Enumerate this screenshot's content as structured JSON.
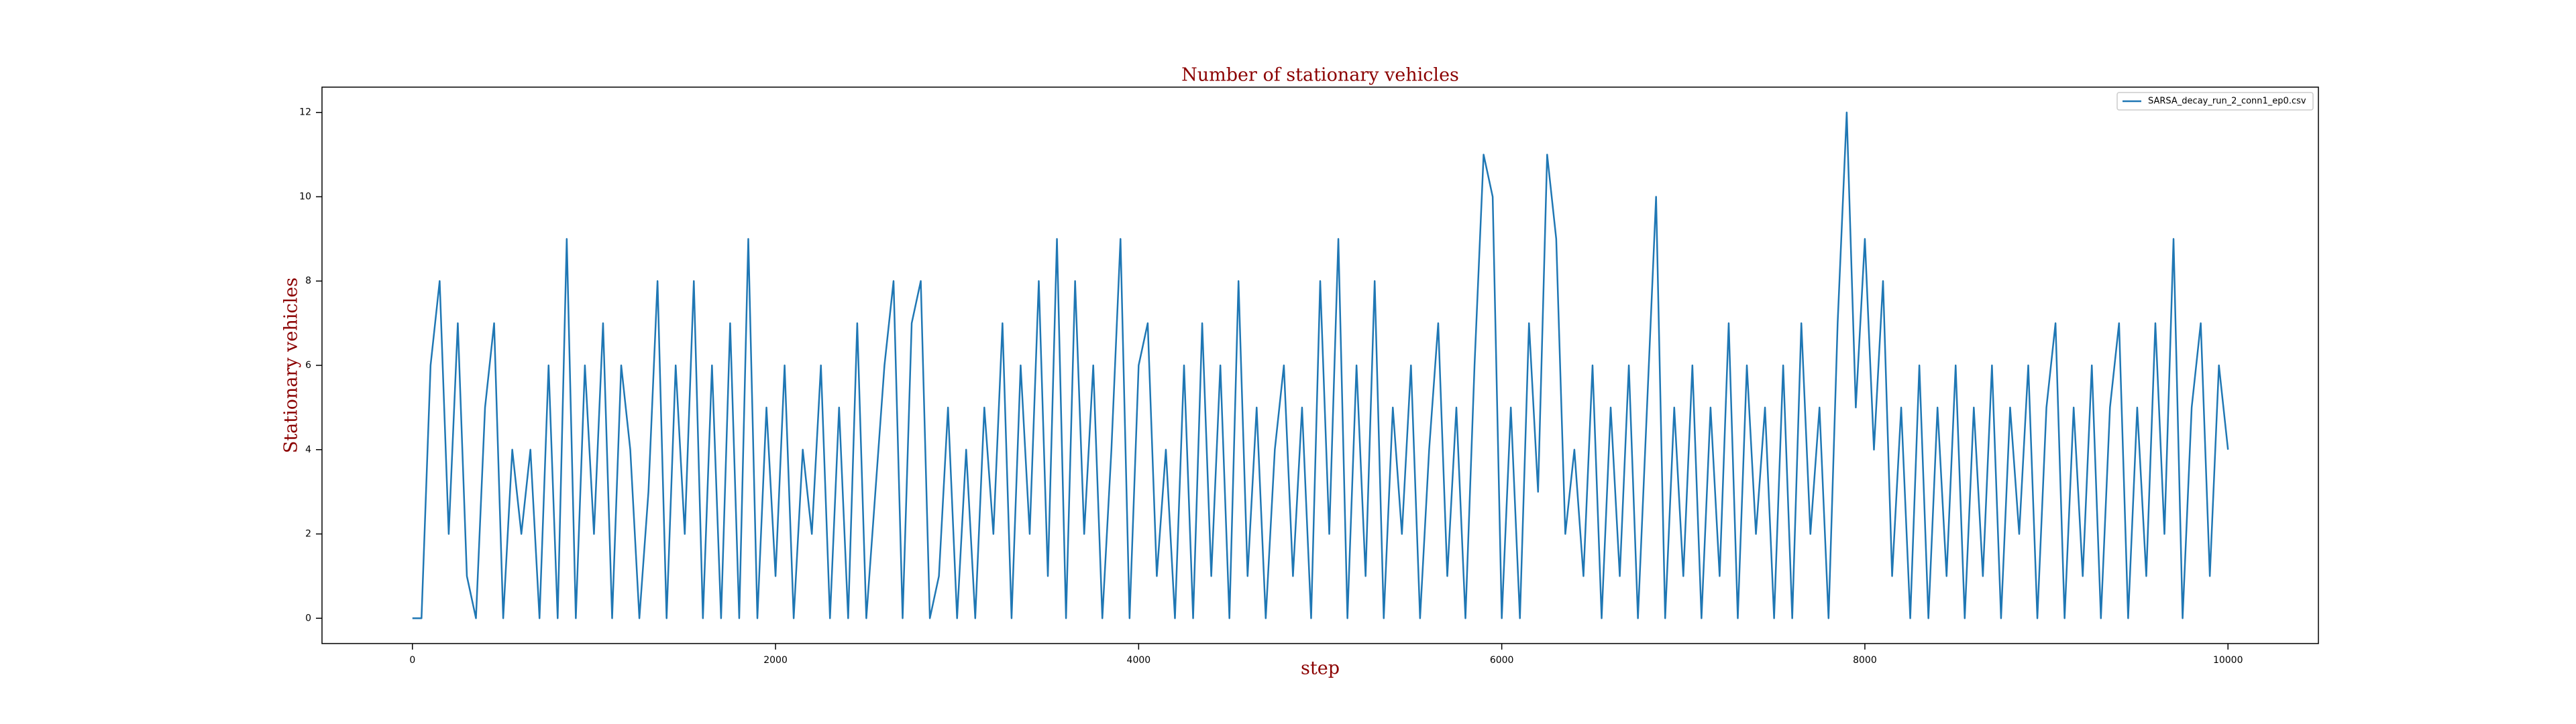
{
  "chart_data": {
    "type": "line",
    "title": "Number of stationary vehicles",
    "xlabel": "step",
    "ylabel": "Stationary vehicles",
    "x": [
      0,
      50,
      100,
      150,
      200,
      250,
      300,
      350,
      400,
      450,
      500,
      550,
      600,
      650,
      700,
      750,
      800,
      850,
      900,
      950,
      1000,
      1050,
      1100,
      1150,
      1200,
      1250,
      1300,
      1350,
      1400,
      1450,
      1500,
      1550,
      1600,
      1650,
      1700,
      1750,
      1800,
      1850,
      1900,
      1950,
      2000,
      2050,
      2100,
      2150,
      2200,
      2250,
      2300,
      2350,
      2400,
      2450,
      2500,
      2550,
      2600,
      2650,
      2700,
      2750,
      2800,
      2850,
      2900,
      2950,
      3000,
      3050,
      3100,
      3150,
      3200,
      3250,
      3300,
      3350,
      3400,
      3450,
      3500,
      3550,
      3600,
      3650,
      3700,
      3750,
      3800,
      3850,
      3900,
      3950,
      4000,
      4050,
      4100,
      4150,
      4200,
      4250,
      4300,
      4350,
      4400,
      4450,
      4500,
      4550,
      4600,
      4650,
      4700,
      4750,
      4800,
      4850,
      4900,
      4950,
      5000,
      5050,
      5100,
      5150,
      5200,
      5250,
      5300,
      5350,
      5400,
      5450,
      5500,
      5550,
      5600,
      5650,
      5700,
      5750,
      5800,
      5850,
      5900,
      5950,
      6000,
      6050,
      6100,
      6150,
      6200,
      6250,
      6300,
      6350,
      6400,
      6450,
      6500,
      6550,
      6600,
      6650,
      6700,
      6750,
      6800,
      6850,
      6900,
      6950,
      7000,
      7050,
      7100,
      7150,
      7200,
      7250,
      7300,
      7350,
      7400,
      7450,
      7500,
      7550,
      7600,
      7650,
      7700,
      7750,
      7800,
      7850,
      7900,
      7950,
      8000,
      8050,
      8100,
      8150,
      8200,
      8250,
      8300,
      8350,
      8400,
      8450,
      8500,
      8550,
      8600,
      8650,
      8700,
      8750,
      8800,
      8850,
      8900,
      8950,
      9000,
      9050,
      9100,
      9150,
      9200,
      9250,
      9300,
      9350,
      9400,
      9450,
      9500,
      9550,
      9600,
      9650,
      9700,
      9750,
      9800,
      9850,
      9900,
      9950,
      10000
    ],
    "series": [
      {
        "name": "SARSA_decay_run_2_conn1_ep0.csv",
        "color": "#1f77b4",
        "values": [
          0,
          0,
          6,
          8,
          2,
          7,
          1,
          0,
          5,
          7,
          0,
          4,
          2,
          4,
          0,
          6,
          0,
          9,
          0,
          6,
          2,
          7,
          0,
          6,
          4,
          0,
          3,
          8,
          0,
          6,
          2,
          8,
          0,
          6,
          0,
          7,
          0,
          9,
          0,
          5,
          1,
          6,
          0,
          4,
          2,
          6,
          0,
          5,
          0,
          7,
          0,
          3,
          6,
          8,
          0,
          7,
          8,
          0,
          1,
          5,
          0,
          4,
          0,
          5,
          2,
          7,
          0,
          6,
          2,
          8,
          1,
          9,
          0,
          8,
          2,
          6,
          0,
          4,
          9,
          0,
          6,
          7,
          1,
          4,
          0,
          6,
          0,
          7,
          1,
          6,
          0,
          8,
          1,
          5,
          0,
          4,
          6,
          1,
          5,
          0,
          8,
          2,
          9,
          0,
          6,
          1,
          8,
          0,
          5,
          2,
          6,
          0,
          4,
          7,
          1,
          5,
          0,
          6,
          11,
          10,
          0,
          5,
          0,
          7,
          3,
          11,
          9,
          2,
          4,
          1,
          6,
          0,
          5,
          1,
          6,
          0,
          5,
          10,
          0,
          5,
          1,
          6,
          0,
          5,
          1,
          7,
          0,
          6,
          2,
          5,
          0,
          6,
          0,
          7,
          2,
          5,
          0,
          7,
          12,
          5,
          9,
          4,
          8,
          1,
          5,
          0,
          6,
          0,
          5,
          1,
          6,
          0,
          5,
          1,
          6,
          0,
          5,
          2,
          6,
          0,
          5,
          7,
          0,
          5,
          1,
          6,
          0,
          5,
          7,
          0,
          5,
          1,
          7,
          2,
          9,
          0,
          5,
          7,
          1,
          6,
          4
        ]
      }
    ],
    "xlim": [
      -498,
      10498
    ],
    "ylim": [
      -0.6,
      12.6
    ],
    "xticks": [
      0,
      2000,
      4000,
      6000,
      8000,
      10000
    ],
    "yticks": [
      0,
      2,
      4,
      6,
      8,
      10,
      12
    ],
    "legend": "upper right"
  }
}
